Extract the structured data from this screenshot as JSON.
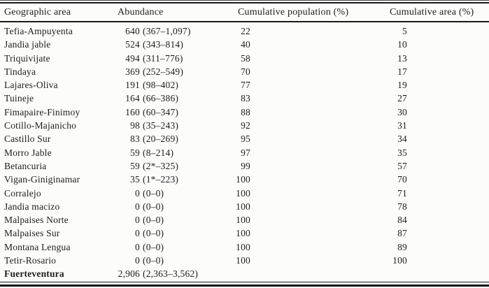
{
  "table": {
    "headers": {
      "area": "Geographic area",
      "abundance": "Abundance",
      "cumulative_population": "Cumulative population (%)",
      "cumulative_area": "Cumulative area (%)"
    },
    "rows": [
      {
        "area": "Tefia-Ampuyenta",
        "abundance": "640",
        "range": "(367–1,097)",
        "cum_pop": "22",
        "cum_area": "5",
        "bold": false
      },
      {
        "area": "Jandia jable",
        "abundance": "524",
        "range": "(343–814)",
        "cum_pop": "40",
        "cum_area": "10",
        "bold": false
      },
      {
        "area": "Triquivijate",
        "abundance": "494",
        "range": "(311–776)",
        "cum_pop": "58",
        "cum_area": "13",
        "bold": false
      },
      {
        "area": "Tindaya",
        "abundance": "369",
        "range": "(252–549)",
        "cum_pop": "70",
        "cum_area": "17",
        "bold": false
      },
      {
        "area": "Lajares-Oliva",
        "abundance": "191",
        "range": "(98–402)",
        "cum_pop": "77",
        "cum_area": "19",
        "bold": false
      },
      {
        "area": "Tuineje",
        "abundance": "164",
        "range": "(66–386)",
        "cum_pop": "83",
        "cum_area": "27",
        "bold": false
      },
      {
        "area": "Fimapaire-Finimoy",
        "abundance": "160",
        "range": "(60–347)",
        "cum_pop": "88",
        "cum_area": "30",
        "bold": false
      },
      {
        "area": "Cotillo-Majanicho",
        "abundance": "98",
        "range": "(35–243)",
        "cum_pop": "92",
        "cum_area": "31",
        "bold": false
      },
      {
        "area": "Castillo Sur",
        "abundance": "83",
        "range": "(20–269)",
        "cum_pop": "95",
        "cum_area": "34",
        "bold": false
      },
      {
        "area": "Morro Jable",
        "abundance": "59",
        "range": "(8–214)",
        "cum_pop": "97",
        "cum_area": "35",
        "bold": false
      },
      {
        "area": "Betancuria",
        "abundance": "59",
        "range": "(2*–325)",
        "cum_pop": "99",
        "cum_area": "57",
        "bold": false
      },
      {
        "area": "Vigan-Giniginamar",
        "abundance": "35",
        "range": "(1*–223)",
        "cum_pop": "100",
        "cum_area": "70",
        "bold": false
      },
      {
        "area": "Corralejo",
        "abundance": "0",
        "range": "(0–0)",
        "cum_pop": "100",
        "cum_area": "71",
        "bold": false
      },
      {
        "area": "Jandia macizo",
        "abundance": "0",
        "range": "(0–0)",
        "cum_pop": "100",
        "cum_area": "78",
        "bold": false
      },
      {
        "area": "Malpaises Norte",
        "abundance": "0",
        "range": "(0–0)",
        "cum_pop": "100",
        "cum_area": "84",
        "bold": false
      },
      {
        "area": "Malpaises Sur",
        "abundance": "0",
        "range": "(0–0)",
        "cum_pop": "100",
        "cum_area": "87",
        "bold": false
      },
      {
        "area": "Montana Lengua",
        "abundance": "0",
        "range": "(0–0)",
        "cum_pop": "100",
        "cum_area": "89",
        "bold": false
      },
      {
        "area": "Tetir-Rosario",
        "abundance": "0",
        "range": "(0–0)",
        "cum_pop": "100",
        "cum_area": "100",
        "bold": false
      },
      {
        "area": "Fuerteventura",
        "abundance": "2,906",
        "range": "(2,363–3,562)",
        "cum_pop": "",
        "cum_area": "",
        "bold": true
      }
    ]
  },
  "colors": {
    "text": "#1c1c1c",
    "background": "#fcfcfb",
    "rule": "#1a1a1a"
  }
}
